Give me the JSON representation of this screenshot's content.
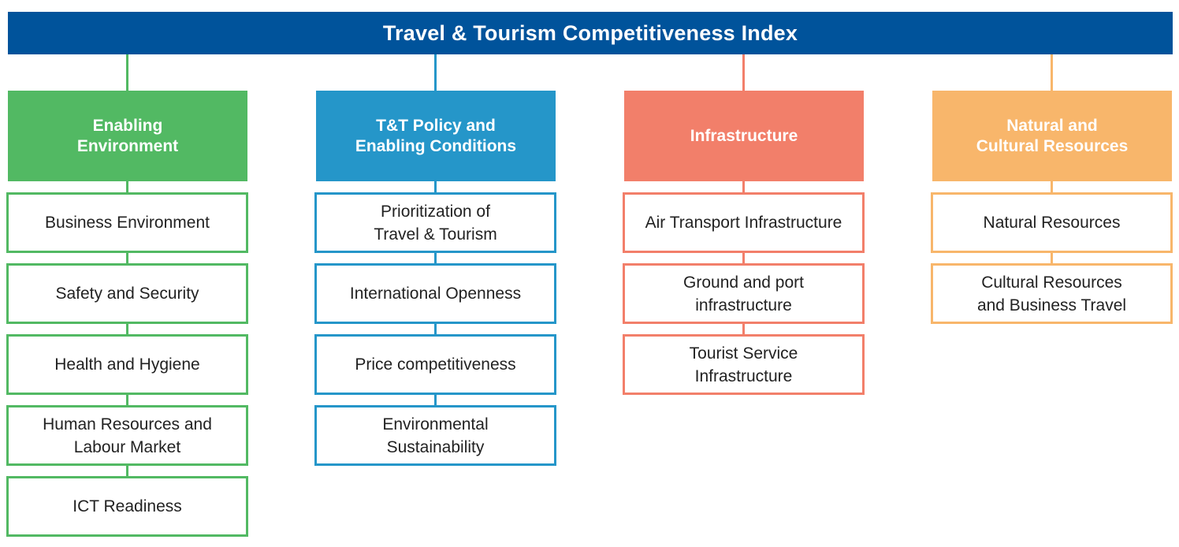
{
  "title": "Travel & Tourism Competitiveness Index",
  "colors": {
    "top_bar": "#00539b",
    "enabling_environment": "#52b963",
    "policy": "#2596c9",
    "infrastructure": "#f27f6a",
    "natural_cultural": "#f8b66b"
  },
  "pillars": [
    {
      "label": "Enabling\nEnvironment",
      "color": "#52b963",
      "items": [
        "Business Environment",
        "Safety and Security",
        "Health and Hygiene",
        "Human Resources and\nLabour Market",
        "ICT Readiness"
      ]
    },
    {
      "label": "T&T Policy and\nEnabling Conditions",
      "color": "#2596c9",
      "items": [
        "Prioritization of\nTravel & Tourism",
        "International Openness",
        "Price competitiveness",
        "Environmental\nSustainability"
      ]
    },
    {
      "label": "Infrastructure",
      "color": "#f27f6a",
      "items": [
        "Air Transport Infrastructure",
        "Ground and port\ninfrastructure",
        "Tourist Service\nInfrastructure"
      ]
    },
    {
      "label": "Natural and\nCultural Resources",
      "color": "#f8b66b",
      "items": [
        "Natural Resources",
        "Cultural Resources\nand Business Travel"
      ]
    }
  ]
}
